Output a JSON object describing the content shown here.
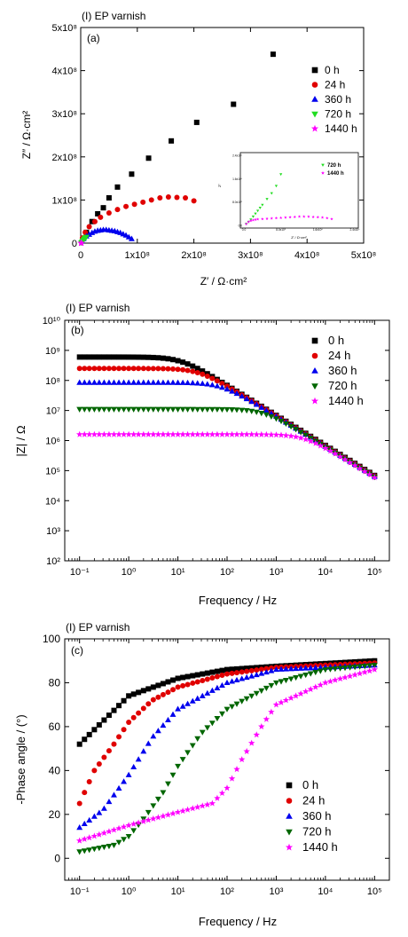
{
  "chart_data": [
    {
      "type": "scatter",
      "panel_tag": "(I) EP varnish",
      "panel_label": "(a)",
      "xlabel": "Z′ / Ω·cm²",
      "ylabel": "Z″ / Ω·cm²",
      "xlim": [
        0,
        500000000.0
      ],
      "ylim": [
        0,
        500000000.0
      ],
      "x_ticks": [
        "0",
        "1x10⁸",
        "2x10⁸",
        "3x10⁸",
        "4x10⁸",
        "5x10⁸"
      ],
      "y_ticks": [
        "0",
        "1x10⁸",
        "2x10⁸",
        "3x10⁸",
        "4x10⁸",
        "5x10⁸"
      ],
      "legend_position": "right",
      "series": [
        {
          "name": "0 h",
          "color": "#000000",
          "marker": "square",
          "x": [
            10000000.0,
            20000000.0,
            30000000.0,
            40000000.0,
            50000000.0,
            65000000.0,
            90000000.0,
            120000000.0,
            160000000.0,
            205000000.0,
            270000000.0,
            340000000.0
          ],
          "y": [
            25000000.0,
            50000000.0,
            68000000.0,
            82000000.0,
            105000000.0,
            130000000.0,
            160000000.0,
            197000000.0,
            237000000.0,
            280000000.0,
            322000000.0,
            438000000.0
          ]
        },
        {
          "name": "24 h",
          "color": "#e00000",
          "marker": "circle",
          "x": [
            3000000.0,
            8000000.0,
            15000000.0,
            25000000.0,
            35000000.0,
            50000000.0,
            65000000.0,
            80000000.0,
            95000000.0,
            110000000.0,
            125000000.0,
            140000000.0,
            155000000.0,
            170000000.0,
            185000000.0,
            200000000.0
          ],
          "y": [
            12000000.0,
            25000000.0,
            38000000.0,
            50000000.0,
            60000000.0,
            70000000.0,
            78000000.0,
            85000000.0,
            90000000.0,
            95000000.0,
            100000000.0,
            105000000.0,
            107000000.0,
            106000000.0,
            105000000.0,
            98000000.0
          ]
        },
        {
          "name": "360 h",
          "color": "#0000ee",
          "marker": "triangle-up",
          "x": [
            2000000.0,
            5000000.0,
            10000000.0,
            15000000.0,
            20000000.0,
            25000000.0,
            30000000.0,
            35000000.0,
            40000000.0,
            45000000.0,
            50000000.0,
            55000000.0,
            60000000.0,
            65000000.0,
            70000000.0,
            75000000.0,
            80000000.0,
            85000000.0,
            90000000.0
          ],
          "y": [
            5000000.0,
            10000000.0,
            16000000.0,
            20000000.0,
            24000000.0,
            27000000.0,
            29000000.0,
            30000000.0,
            31000000.0,
            31000000.0,
            30000000.0,
            29000000.0,
            28000000.0,
            26000000.0,
            24000000.0,
            21000000.0,
            18000000.0,
            14000000.0,
            10000000.0
          ]
        },
        {
          "name": "720 h",
          "color": "#22dd22",
          "marker": "triangle-down",
          "x": [
            1000000.0,
            2000000.0,
            3000000.0,
            4000000.0,
            5000000.0,
            6000000.0,
            7000000.0,
            8000000.0,
            9000000.0,
            10000000.0
          ],
          "y": [
            1000000.0,
            2000000.0,
            3500000.0,
            5000000.0,
            7000000.0,
            9000000.0,
            11000000.0,
            12000000.0,
            13000000.0,
            14000000.0
          ]
        },
        {
          "name": "1440 h",
          "color": "#ff00ff",
          "marker": "star",
          "x": [
            200000.0,
            400000.0,
            600000.0,
            800000.0,
            1000000.0,
            1200000.0,
            1400000.0,
            1600000.0
          ],
          "y": [
            100000.0,
            200000.0,
            300000.0,
            350000.0,
            400000.0,
            420000.0,
            410000.0,
            380000.0
          ]
        }
      ],
      "inset": {
        "tick_labels": [
          "2.4x10⁶",
          "1.6x10⁶",
          "8.0x10⁵",
          "0.0",
          "0.0",
          "8.0x10⁵",
          "1.6x10⁶",
          "2.4x10⁶"
        ],
        "xlabel": "Z′ / Ω·cm²",
        "ylabel": "Z″",
        "legend": [
          "720 h",
          "1440 h"
        ],
        "xlim": [
          0,
          2400000.0
        ],
        "ylim": [
          0,
          2400000.0
        ],
        "series": [
          {
            "name": "720 h",
            "color": "#22dd22",
            "marker": "triangle-down",
            "x": [
              50000.0,
              100000.0,
              150000.0,
              200000.0,
              250000.0,
              300000.0,
              350000.0,
              400000.0,
              500000.0,
              600000.0,
              700000.0,
              800000.0
            ],
            "y": [
              50000.0,
              120000.0,
              200000.0,
              300000.0,
              400000.0,
              500000.0,
              600000.0,
              700000.0,
              900000.0,
              1100000.0,
              1350000.0,
              1750000.0
            ]
          },
          {
            "name": "1440 h",
            "color": "#ff00ff",
            "marker": "star",
            "x": [
              50000.0,
              100000.0,
              150000.0,
              200000.0,
              250000.0,
              300000.0,
              400000.0,
              500000.0,
              600000.0,
              700000.0,
              800000.0,
              900000.0,
              1000000.0,
              1100000.0,
              1200000.0,
              1300000.0,
              1400000.0,
              1500000.0,
              1600000.0,
              1700000.0,
              1800000.0,
              1900000.0
            ],
            "y": [
              50000.0,
              120000.0,
              160000.0,
              180000.0,
              200000.0,
              210000.0,
              220000.0,
              230000.0,
              240000.0,
              250000.0,
              260000.0,
              270000.0,
              280000.0,
              290000.0,
              300000.0,
              300000.0,
              300000.0,
              290000.0,
              280000.0,
              270000.0,
              250000.0,
              220000.0
            ]
          }
        ]
      }
    },
    {
      "type": "scatter",
      "panel_tag": "(I) EP varnish",
      "panel_label": "(b)",
      "xlabel": "Frequency / Hz",
      "ylabel": "|Z| / Ω",
      "x_scale": "log",
      "y_scale": "log",
      "xlim": [
        0.05,
        200000
      ],
      "ylim": [
        100,
        10000000000
      ],
      "x_ticks": [
        "10⁻¹",
        "10⁰",
        "10¹",
        "10²",
        "10³",
        "10⁴",
        "10⁵"
      ],
      "y_ticks": [
        "10²",
        "10³",
        "10⁴",
        "10⁵",
        "10⁶",
        "10⁷",
        "10⁸",
        "10⁹",
        "10¹⁰"
      ],
      "legend_position": "top-right",
      "x": [
        0.1,
        0.126,
        0.158,
        0.2,
        0.251,
        0.316,
        0.398,
        0.501,
        0.631,
        0.794,
        1,
        1.26,
        1.58,
        2,
        2.51,
        3.16,
        3.98,
        5.01,
        6.31,
        7.94,
        10,
        12.6,
        15.8,
        20,
        25.1,
        31.6,
        39.8,
        50.1,
        63.1,
        79.4,
        100,
        126,
        158,
        200,
        251,
        316,
        398,
        501,
        631,
        794,
        1000,
        1260,
        1580,
        2000,
        2510,
        3160,
        3980,
        5010,
        6310,
        7940,
        10000,
        12600,
        15800,
        20000,
        25100,
        31600,
        39800,
        50100,
        63100,
        79400,
        100000
      ],
      "series": [
        {
          "name": "0 h",
          "color": "#000000",
          "marker": "square",
          "r": 600000000,
          "c": 2.3e-11
        },
        {
          "name": "24 h",
          "color": "#e00000",
          "marker": "circle",
          "r": 250000000,
          "c": 2.4e-11
        },
        {
          "name": "360 h",
          "color": "#0000ee",
          "marker": "triangle-up",
          "r": 85000000,
          "c": 2.5e-11
        },
        {
          "name": "720 h",
          "color": "#006600",
          "marker": "triangle-down",
          "r": 11000000,
          "c": 2.6e-11
        },
        {
          "name": "1440 h",
          "color": "#ff00ff",
          "marker": "star",
          "r": 1600000,
          "c": 2.7e-11
        }
      ]
    },
    {
      "type": "scatter",
      "panel_tag": "(I) EP varnish",
      "panel_label": "(c)",
      "xlabel": "Frequency / Hz",
      "ylabel": "-Phase angle / (°)",
      "x_scale": "log",
      "xlim": [
        0.05,
        200000
      ],
      "ylim": [
        -10,
        100
      ],
      "x_ticks": [
        "10⁻¹",
        "10⁰",
        "10¹",
        "10²",
        "10³",
        "10⁴",
        "10⁵"
      ],
      "y_ticks": [
        "0",
        "20",
        "40",
        "60",
        "80",
        "100"
      ],
      "legend_position": "bottom-right",
      "x": [
        0.1,
        0.126,
        0.158,
        0.2,
        0.251,
        0.316,
        0.398,
        0.501,
        0.631,
        0.794,
        1,
        1.26,
        1.58,
        2,
        2.51,
        3.16,
        3.98,
        5.01,
        6.31,
        7.94,
        10,
        12.6,
        15.8,
        20,
        25.1,
        31.6,
        39.8,
        50.1,
        63.1,
        79.4,
        100,
        126,
        158,
        200,
        251,
        316,
        398,
        501,
        631,
        794,
        1000,
        1260,
        1580,
        2000,
        2510,
        3160,
        3980,
        5010,
        6310,
        7940,
        10000,
        12600,
        15800,
        20000,
        25100,
        31600,
        39800,
        50100,
        63100,
        79400,
        100000
      ],
      "series": [
        {
          "name": "0 h",
          "color": "#000000",
          "marker": "square",
          "points": [
            [
              0.1,
              52
            ],
            [
              1,
              74
            ],
            [
              10,
              82
            ],
            [
              100,
              86
            ],
            [
              1000,
              87.5
            ],
            [
              100000,
              90
            ]
          ]
        },
        {
          "name": "24 h",
          "color": "#e00000",
          "marker": "circle",
          "points": [
            [
              0.1,
              25
            ],
            [
              0.2,
              40
            ],
            [
              0.5,
              52
            ],
            [
              1,
              62
            ],
            [
              3,
              72
            ],
            [
              10,
              78
            ],
            [
              100,
              84
            ],
            [
              1000,
              87
            ],
            [
              100000,
              89
            ]
          ]
        },
        {
          "name": "360 h",
          "color": "#0000ee",
          "marker": "triangle-up",
          "points": [
            [
              0.1,
              14
            ],
            [
              0.3,
              22
            ],
            [
              1,
              38
            ],
            [
              3,
              55
            ],
            [
              10,
              68
            ],
            [
              100,
              80
            ],
            [
              1000,
              86
            ],
            [
              100000,
              88
            ]
          ]
        },
        {
          "name": "720 h",
          "color": "#006600",
          "marker": "triangle-down",
          "points": [
            [
              0.1,
              3
            ],
            [
              0.5,
              6
            ],
            [
              1,
              10
            ],
            [
              2,
              18
            ],
            [
              5,
              30
            ],
            [
              10,
              42
            ],
            [
              30,
              57
            ],
            [
              100,
              68
            ],
            [
              1000,
              80
            ],
            [
              10000,
              86
            ],
            [
              100000,
              88
            ]
          ]
        },
        {
          "name": "1440 h",
          "color": "#ff00ff",
          "marker": "star",
          "points": [
            [
              0.1,
              8
            ],
            [
              1,
              15
            ],
            [
              10,
              21
            ],
            [
              50,
              25
            ],
            [
              100,
              32
            ],
            [
              200,
              45
            ],
            [
              500,
              60
            ],
            [
              1000,
              70
            ],
            [
              10000,
              80
            ],
            [
              100000,
              86
            ]
          ]
        }
      ]
    }
  ]
}
